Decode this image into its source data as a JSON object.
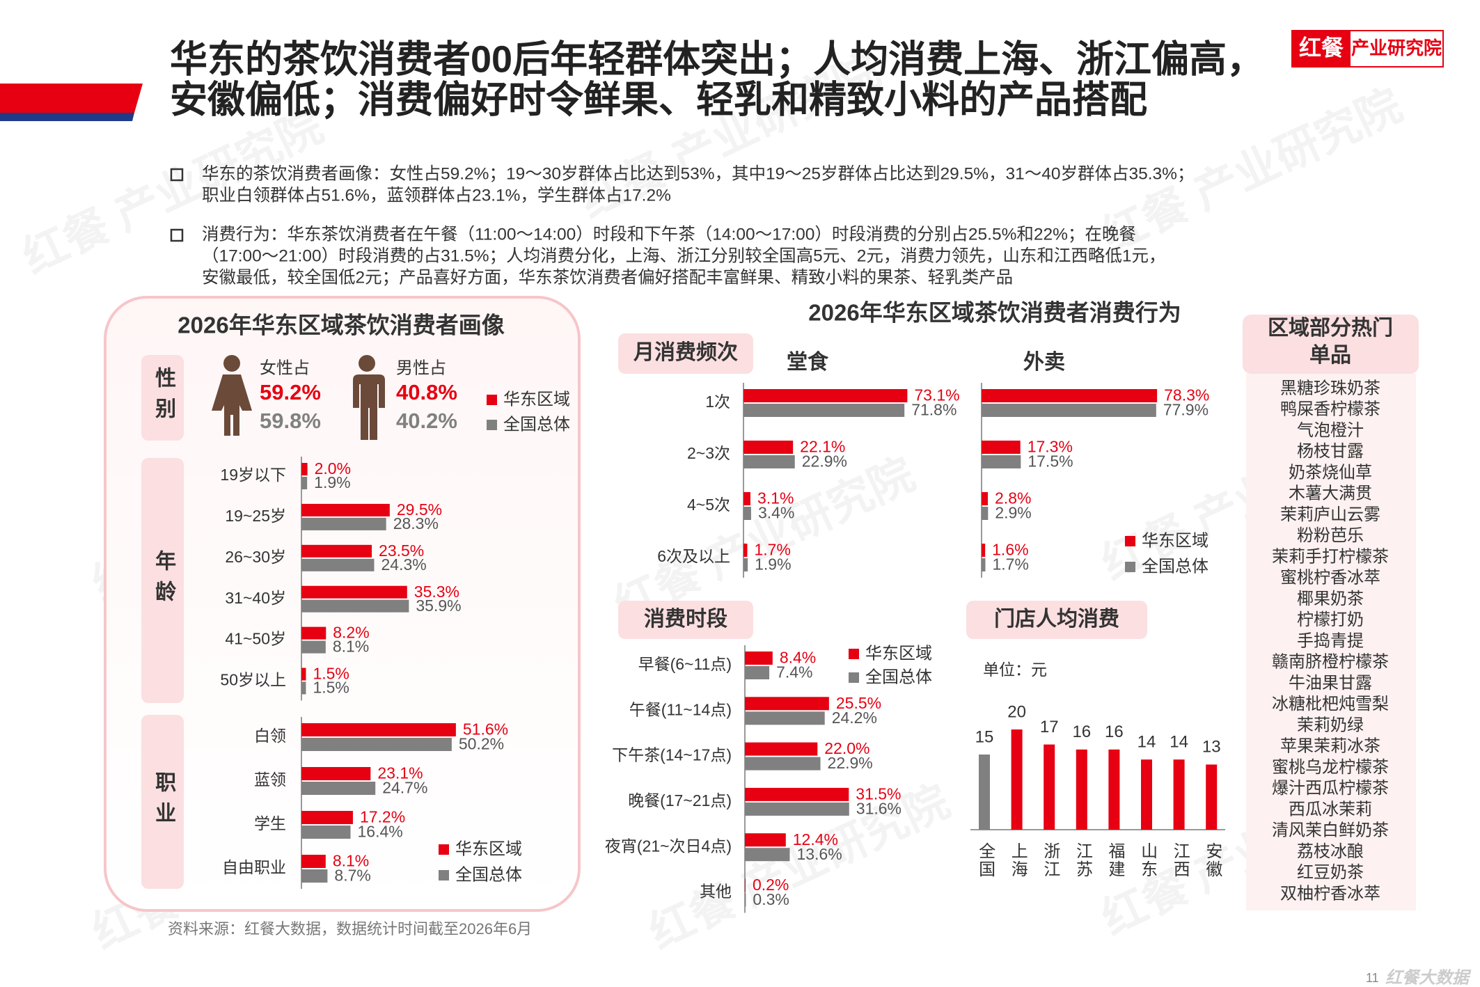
{
  "header": {
    "title_lines": [
      "华东的茶饮消费者00后年轻群体突出；人均消费上海、浙江偏高，",
      "安徽偏低；消费偏好时令鲜果、轻乳和精致小料的产品搭配"
    ],
    "brand": "红餐",
    "brand_sub": "产业研究院"
  },
  "watermark": "红餐 产业研究院",
  "bullets": [
    [
      "华东的茶饮消费者画像：女性占59.2%；19～30岁群体占比达到53%，其中19～25岁群体占比达到29.5%，31～40岁群体占35.3%；",
      "职业白领群体占51.6%，蓝领群体占23.1%，学生群体占17.2%"
    ],
    [
      "消费行为：华东茶饮消费者在午餐（11:00～14:00）时段和下午茶（14:00～17:00）时段消费的分别占25.5%和22%；在晚餐",
      "（17:00～21:00）时段消费的占31.5%；人均消费分化，上海、浙江分别较全国高5元、2元，消费力领先，山东和江西略低1元，",
      "安徽最低，较全国低2元；产品喜好方面，华东茶饮消费者偏好搭配丰富鲜果、精致小料的果茶、轻乳类产品"
    ]
  ],
  "portrait_title": "2026年华东区域茶饮消费者画像",
  "behavior_title": "2026年华东区域茶饮消费者消费行为",
  "chart_data": [
    {
      "type": "stat",
      "section_label": "性别",
      "categories": [
        "女性占",
        "男性占"
      ],
      "series": [
        {
          "name": "华东区域",
          "color": "#e60012",
          "values": [
            59.2,
            40.8
          ],
          "value_labels": [
            "59.2%",
            "40.8%"
          ]
        },
        {
          "name": "全国总体",
          "color": "#808080",
          "values": [
            59.8,
            40.2
          ],
          "value_labels": [
            "59.8%",
            "40.2%"
          ]
        }
      ]
    },
    {
      "type": "hbar",
      "section_label": "年龄",
      "categories": [
        "19岁以下",
        "19~25岁",
        "26~30岁",
        "31~40岁",
        "41~50岁",
        "50岁以上"
      ],
      "series": [
        {
          "color": "#e60012",
          "values": [
            2.0,
            29.5,
            23.5,
            35.3,
            8.2,
            1.5
          ],
          "value_labels": [
            "2.0%",
            "29.5%",
            "23.5%",
            "35.3%",
            "8.2%",
            "1.5%"
          ]
        },
        {
          "color": "#808080",
          "values": [
            1.9,
            28.3,
            24.3,
            35.9,
            8.1,
            1.5
          ],
          "value_labels": [
            "1.9%",
            "28.3%",
            "24.3%",
            "35.9%",
            "8.1%",
            "1.5%"
          ]
        }
      ]
    },
    {
      "type": "hbar",
      "section_label": "职业",
      "categories": [
        "白领",
        "蓝领",
        "学生",
        "自由职业"
      ],
      "series": [
        {
          "name": "华东区域",
          "color": "#e60012",
          "values": [
            51.6,
            23.1,
            17.2,
            8.1
          ],
          "value_labels": [
            "51.6%",
            "23.1%",
            "17.2%",
            "8.1%"
          ]
        },
        {
          "name": "全国总体",
          "color": "#808080",
          "values": [
            50.2,
            24.7,
            16.4,
            8.7
          ],
          "value_labels": [
            "50.2%",
            "24.7%",
            "16.4%",
            "8.7%"
          ]
        }
      ]
    },
    {
      "type": "hbar",
      "section_label": "月消费频次",
      "categories": [
        "1次",
        "2~3次",
        "4~5次",
        "6次及以上"
      ],
      "panels": [
        {
          "title": "堂食",
          "series": [
            {
              "color": "#e60012",
              "values": [
                73.1,
                22.1,
                3.1,
                1.7
              ],
              "value_labels": [
                "73.1%",
                "22.1%",
                "3.1%",
                "1.7%"
              ]
            },
            {
              "color": "#808080",
              "values": [
                71.8,
                22.9,
                3.4,
                1.9
              ],
              "value_labels": [
                "71.8%",
                "22.9%",
                "3.4%",
                "1.9%"
              ]
            }
          ]
        },
        {
          "title": "外卖",
          "series": [
            {
              "name": "华东区域",
              "color": "#e60012",
              "values": [
                78.3,
                17.3,
                2.8,
                1.6
              ],
              "value_labels": [
                "78.3%",
                "17.3%",
                "2.8%",
                "1.6%"
              ]
            },
            {
              "name": "全国总体",
              "color": "#808080",
              "values": [
                77.9,
                17.5,
                2.9,
                1.7
              ],
              "value_labels": [
                "77.9%",
                "17.5%",
                "2.9%",
                "1.7%"
              ]
            }
          ]
        }
      ]
    },
    {
      "type": "hbar",
      "section_label": "消费时段",
      "categories": [
        "早餐(6~11点)",
        "午餐(11~14点)",
        "下午茶(14~17点)",
        "晚餐(17~21点)",
        "夜宵(21~次日4点)",
        "其他"
      ],
      "series": [
        {
          "name": "华东区域",
          "color": "#e60012",
          "values": [
            8.4,
            25.5,
            22.0,
            31.5,
            12.4,
            0.2
          ],
          "value_labels": [
            "8.4%",
            "25.5%",
            "22.0%",
            "31.5%",
            "12.4%",
            "0.2%"
          ]
        },
        {
          "name": "全国总体",
          "color": "#808080",
          "values": [
            7.4,
            24.2,
            22.9,
            31.6,
            13.6,
            0.3
          ],
          "value_labels": [
            "7.4%",
            "24.2%",
            "22.9%",
            "31.6%",
            "13.6%",
            "0.3%"
          ]
        }
      ]
    },
    {
      "type": "bar",
      "section_label": "门店人均消费",
      "unit_label": "单位：元",
      "categories": [
        "全国",
        "上海",
        "浙江",
        "江苏",
        "福建",
        "山东",
        "江西",
        "安徽"
      ],
      "values": [
        15,
        20,
        17,
        16,
        16,
        14,
        14,
        13
      ],
      "colors": [
        "#808080",
        "#e60012",
        "#e60012",
        "#e60012",
        "#e60012",
        "#e60012",
        "#e60012",
        "#e60012"
      ]
    }
  ],
  "products": {
    "title_lines": [
      "区域部分热门",
      "单品"
    ],
    "items": [
      "黑糖珍珠奶茶",
      "鸭屎香柠檬茶",
      "气泡橙汁",
      "杨枝甘露",
      "奶茶烧仙草",
      "木薯大满贯",
      "茉莉庐山云雾",
      "粉粉芭乐",
      "茉莉手打柠檬茶",
      "蜜桃柠香冰萃",
      "椰果奶茶",
      "柠檬打奶",
      "手捣青提",
      "赣南脐橙柠檬茶",
      "牛油果甘露",
      "冰糖枇杷炖雪梨",
      "茉莉奶绿",
      "苹果茉莉冰茶",
      "蜜桃乌龙柠檬茶",
      "爆汁西瓜柠檬茶",
      "西瓜冰茉莉",
      "清风茉白鲜奶茶",
      "荔枝冰酿",
      "红豆奶茶",
      "双柚柠香冰萃"
    ]
  },
  "source": "资料来源：红餐大数据，数据统计时间截至2026年6月",
  "page_number": "11",
  "footer_brand": "红餐大数据"
}
